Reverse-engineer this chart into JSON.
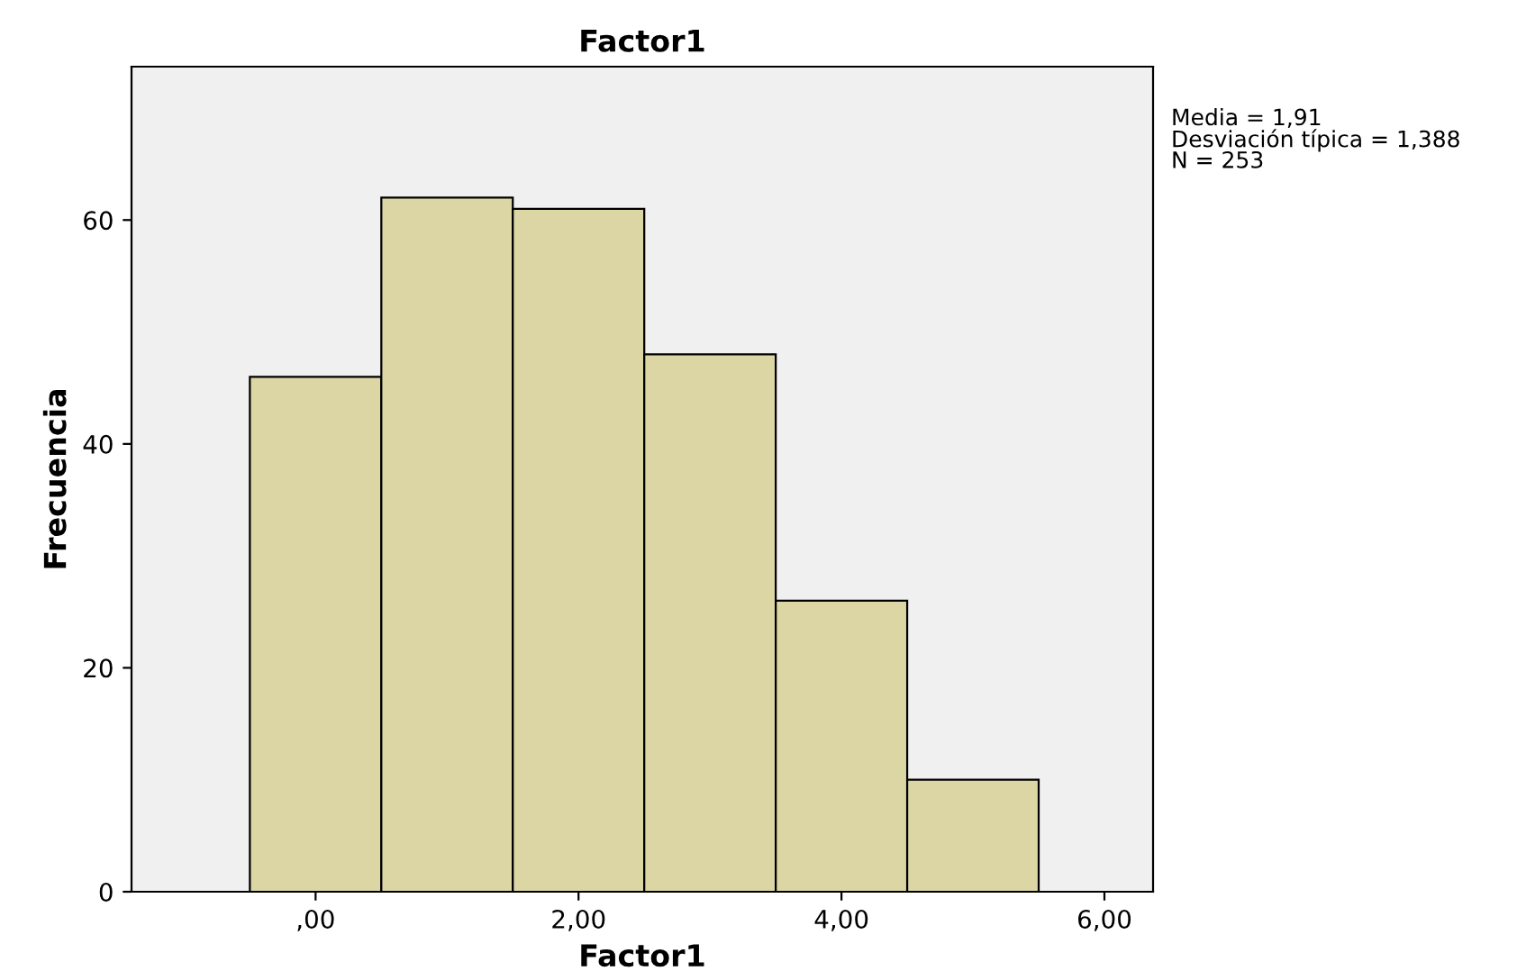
{
  "chart_data": {
    "type": "histogram",
    "title": "Factor1",
    "xlabel": "Factor1",
    "ylabel": "Frecuencia",
    "bins": [
      -0.5,
      0.5,
      1.5,
      2.5,
      3.5,
      4.5,
      5.5
    ],
    "values": [
      46,
      62,
      61,
      48,
      26,
      10
    ],
    "color": "#dcd5a4",
    "xlim": [
      -1.4,
      6.37
    ],
    "xticks": [
      {
        "value": 0,
        "label": ",00"
      },
      {
        "value": 2,
        "label": "2,00"
      },
      {
        "value": 4,
        "label": "4,00"
      },
      {
        "value": 6,
        "label": "6,00"
      }
    ],
    "ylim": [
      0,
      73.7
    ],
    "yticks": [
      0,
      20,
      40,
      60
    ],
    "grid": false,
    "annotations": [
      "Media = 1,91",
      "Desviación típica = 1,388",
      "N = 253"
    ]
  }
}
